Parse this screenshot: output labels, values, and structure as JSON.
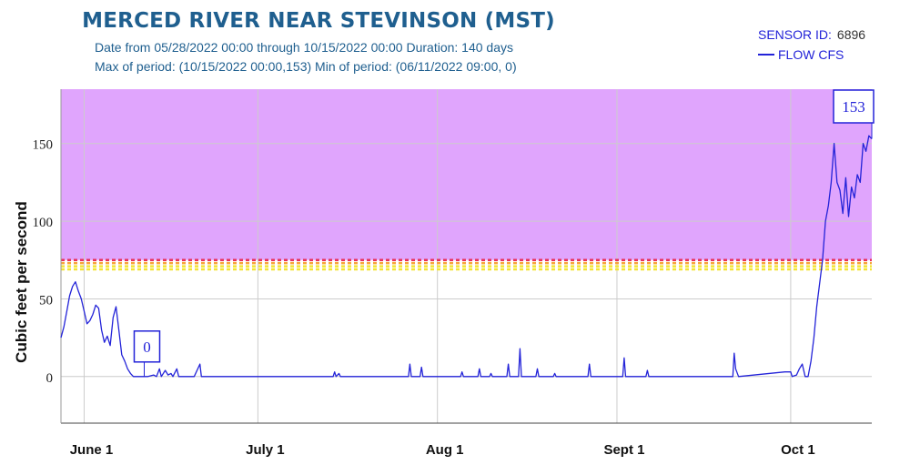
{
  "header": {
    "title": "MERCED RIVER NEAR STEVINSON (MST)",
    "line1": "Date from 05/28/2022 00:00  through 10/15/2022 00:00  Duration: 140 days",
    "line2": "Max of period: (10/15/2022 00:00,153)  Min of period: (06/11/2022 09:00, 0)",
    "sensor_label": "SENSOR ID:",
    "sensor_id": "6896",
    "legend_label": "FLOW CFS"
  },
  "colors": {
    "line": "#2323d8",
    "flood_band": "#e0a5fd",
    "dash_red": "#e8315a",
    "dash_orange": "#f7a338",
    "dash_yellow": "#f3e536",
    "grid": "#cccccc"
  },
  "chart_data": {
    "type": "line",
    "title": "MERCED RIVER NEAR STEVINSON (MST)",
    "xlabel": "",
    "ylabel": "Cubic feet per second",
    "x_domain": [
      "2022-05-28",
      "2022-10-15"
    ],
    "ylim": [
      -30,
      185
    ],
    "yticks": [
      0,
      50,
      100,
      150
    ],
    "ytick_labels": [
      "0",
      "50",
      "100",
      "150"
    ],
    "xticks": [
      {
        "date": "2022-06-01",
        "label": "June 1"
      },
      {
        "date": "2022-07-01",
        "label": "July 1"
      },
      {
        "date": "2022-08-01",
        "label": "Aug 1"
      },
      {
        "date": "2022-09-01",
        "label": "Sept 1"
      },
      {
        "date": "2022-10-01",
        "label": "Oct 1"
      }
    ],
    "flood_band_min": 75,
    "threshold_lines": [
      75,
      73,
      71,
      69
    ],
    "annotations": [
      {
        "label": "0",
        "date": "2022-06-11 09:00",
        "value": 0,
        "kind": "min"
      },
      {
        "label": "153",
        "date": "2022-10-15 00:00",
        "value": 153,
        "kind": "max"
      }
    ],
    "series": [
      {
        "name": "FLOW CFS",
        "points": [
          [
            "2022-05-28",
            25
          ],
          [
            "2022-05-28 12:00",
            32
          ],
          [
            "2022-05-29",
            42
          ],
          [
            "2022-05-29 12:00",
            52
          ],
          [
            "2022-05-30",
            58
          ],
          [
            "2022-05-30 12:00",
            61
          ],
          [
            "2022-05-31",
            55
          ],
          [
            "2022-05-31 12:00",
            50
          ],
          [
            "2022-06-01",
            42
          ],
          [
            "2022-06-01 12:00",
            34
          ],
          [
            "2022-06-02",
            36
          ],
          [
            "2022-06-02 12:00",
            40
          ],
          [
            "2022-06-03",
            46
          ],
          [
            "2022-06-03 12:00",
            44
          ],
          [
            "2022-06-04",
            30
          ],
          [
            "2022-06-04 12:00",
            22
          ],
          [
            "2022-06-05",
            26
          ],
          [
            "2022-06-05 12:00",
            20
          ],
          [
            "2022-06-06",
            38
          ],
          [
            "2022-06-06 12:00",
            45
          ],
          [
            "2022-06-07",
            30
          ],
          [
            "2022-06-07 12:00",
            14
          ],
          [
            "2022-06-08",
            10
          ],
          [
            "2022-06-08 12:00",
            5
          ],
          [
            "2022-06-09",
            2
          ],
          [
            "2022-06-09 12:00",
            0
          ],
          [
            "2022-06-10",
            0
          ],
          [
            "2022-06-11 09:00",
            0
          ],
          [
            "2022-06-12",
            0
          ],
          [
            "2022-06-13",
            1
          ],
          [
            "2022-06-13 12:00",
            0
          ],
          [
            "2022-06-14",
            5
          ],
          [
            "2022-06-14 08:00",
            0
          ],
          [
            "2022-06-15",
            4
          ],
          [
            "2022-06-15 12:00",
            1
          ],
          [
            "2022-06-16",
            2
          ],
          [
            "2022-06-16 08:00",
            0
          ],
          [
            "2022-06-17",
            5
          ],
          [
            "2022-06-17 08:00",
            0
          ],
          [
            "2022-06-18",
            0
          ],
          [
            "2022-06-20",
            0
          ],
          [
            "2022-06-21",
            8
          ],
          [
            "2022-06-21 06:00",
            0
          ],
          [
            "2022-06-25",
            0
          ],
          [
            "2022-07-14",
            0
          ],
          [
            "2022-07-14 06:00",
            3
          ],
          [
            "2022-07-14 12:00",
            0
          ],
          [
            "2022-07-15",
            2
          ],
          [
            "2022-07-15 06:00",
            0
          ],
          [
            "2022-07-27",
            0
          ],
          [
            "2022-07-27 06:00",
            8
          ],
          [
            "2022-07-27 12:00",
            0
          ],
          [
            "2022-07-29",
            0
          ],
          [
            "2022-07-29 06:00",
            6
          ],
          [
            "2022-07-29 12:00",
            0
          ],
          [
            "2022-08-05",
            0
          ],
          [
            "2022-08-05 06:00",
            3
          ],
          [
            "2022-08-05 12:00",
            0
          ],
          [
            "2022-08-08",
            0
          ],
          [
            "2022-08-08 06:00",
            5
          ],
          [
            "2022-08-08 12:00",
            0
          ],
          [
            "2022-08-10",
            0
          ],
          [
            "2022-08-10 06:00",
            2
          ],
          [
            "2022-08-10 12:00",
            0
          ],
          [
            "2022-08-13",
            0
          ],
          [
            "2022-08-13 06:00",
            8
          ],
          [
            "2022-08-13 12:00",
            0
          ],
          [
            "2022-08-15",
            0
          ],
          [
            "2022-08-15 06:00",
            18
          ],
          [
            "2022-08-15 12:00",
            0
          ],
          [
            "2022-08-18",
            0
          ],
          [
            "2022-08-18 06:00",
            5
          ],
          [
            "2022-08-18 12:00",
            0
          ],
          [
            "2022-08-21",
            0
          ],
          [
            "2022-08-21 06:00",
            2
          ],
          [
            "2022-08-21 12:00",
            0
          ],
          [
            "2022-08-27",
            0
          ],
          [
            "2022-08-27 06:00",
            8
          ],
          [
            "2022-08-27 12:00",
            0
          ],
          [
            "2022-09-02",
            0
          ],
          [
            "2022-09-02 06:00",
            12
          ],
          [
            "2022-09-02 12:00",
            0
          ],
          [
            "2022-09-06",
            0
          ],
          [
            "2022-09-06 06:00",
            4
          ],
          [
            "2022-09-06 12:00",
            0
          ],
          [
            "2022-09-21",
            0
          ],
          [
            "2022-09-21 06:00",
            15
          ],
          [
            "2022-09-21 12:00",
            5
          ],
          [
            "2022-09-22",
            0
          ],
          [
            "2022-09-30",
            3
          ],
          [
            "2022-10-01",
            3
          ],
          [
            "2022-10-01 06:00",
            0
          ],
          [
            "2022-10-02",
            1
          ],
          [
            "2022-10-02 12:00",
            5
          ],
          [
            "2022-10-03",
            8
          ],
          [
            "2022-10-03 12:00",
            0
          ],
          [
            "2022-10-04",
            0
          ],
          [
            "2022-10-04 12:00",
            10
          ],
          [
            "2022-10-05",
            25
          ],
          [
            "2022-10-05 12:00",
            45
          ],
          [
            "2022-10-06",
            60
          ],
          [
            "2022-10-06 12:00",
            75
          ],
          [
            "2022-10-07",
            100
          ],
          [
            "2022-10-07 12:00",
            110
          ],
          [
            "2022-10-08",
            125
          ],
          [
            "2022-10-08 12:00",
            150
          ],
          [
            "2022-10-09",
            125
          ],
          [
            "2022-10-09 12:00",
            120
          ],
          [
            "2022-10-10",
            105
          ],
          [
            "2022-10-10 12:00",
            128
          ],
          [
            "2022-10-11",
            103
          ],
          [
            "2022-10-11 12:00",
            122
          ],
          [
            "2022-10-12",
            115
          ],
          [
            "2022-10-12 12:00",
            130
          ],
          [
            "2022-10-13",
            125
          ],
          [
            "2022-10-13 12:00",
            150
          ],
          [
            "2022-10-14",
            145
          ],
          [
            "2022-10-14 12:00",
            155
          ],
          [
            "2022-10-15",
            153
          ]
        ]
      }
    ]
  }
}
